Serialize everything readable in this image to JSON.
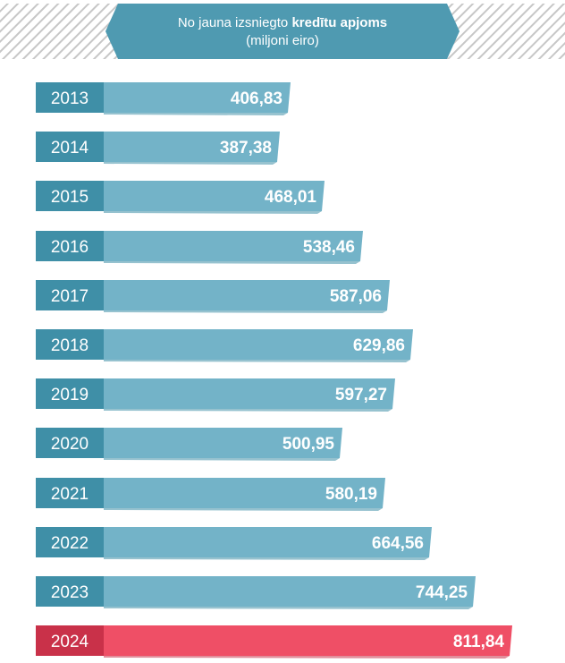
{
  "header": {
    "title_prefix": "No jauna izsniegto ",
    "title_bold": "kredītu apjoms",
    "subtitle": "(miljoni eiro)"
  },
  "colors": {
    "bar": "#73b3c8",
    "bar_dark": "#3f8fa7",
    "year_box": "#3f8fa7",
    "highlight_bar": "#ef4f66",
    "highlight_dark": "#c93149",
    "header_band": "#4f9ab1"
  },
  "chart_data": {
    "type": "bar",
    "orientation": "horizontal",
    "title": "No jauna izsniegto kredītu apjoms",
    "subtitle": "(miljoni eiro)",
    "categories": [
      "2013",
      "2014",
      "2015",
      "2016",
      "2017",
      "2018",
      "2019",
      "2020",
      "2021",
      "2022",
      "2023",
      "2024"
    ],
    "values": [
      406.83,
      387.38,
      468.01,
      538.46,
      587.06,
      629.86,
      597.27,
      500.95,
      580.19,
      664.56,
      744.25,
      811.84
    ],
    "value_labels": [
      "406,83",
      "387,38",
      "468,01",
      "538,46",
      "587,06",
      "629,86",
      "597,27",
      "500,95",
      "580,19",
      "664,56",
      "744,25",
      "811,84"
    ],
    "highlight": "2024"
  }
}
